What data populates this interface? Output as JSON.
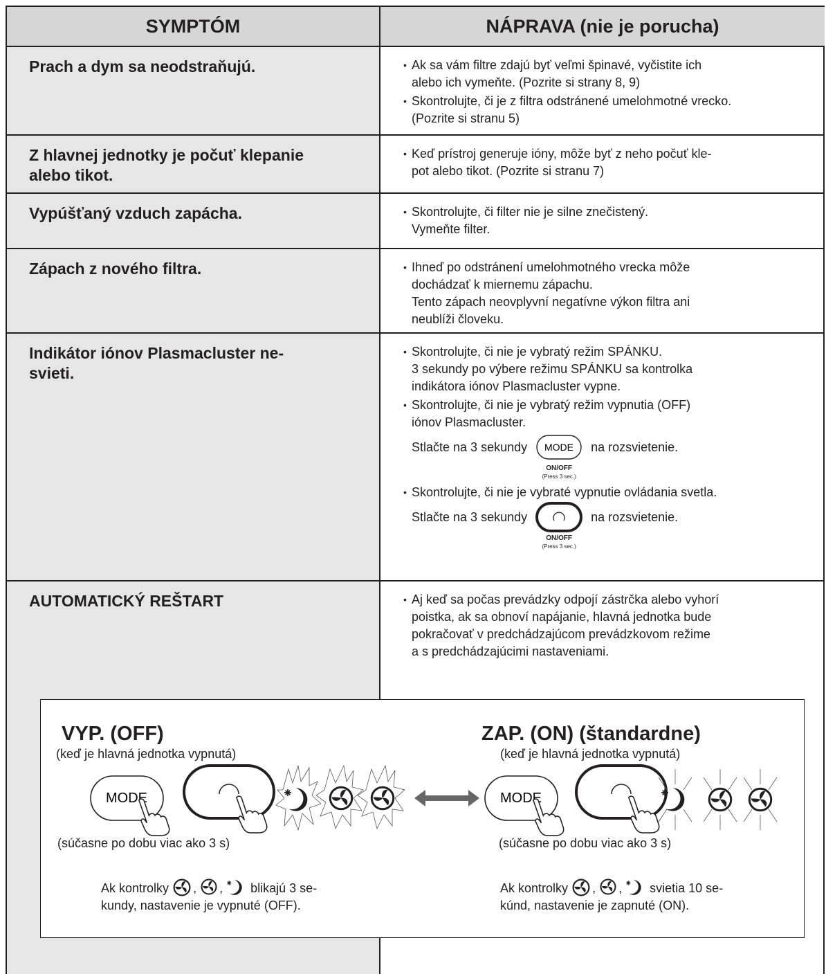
{
  "table": {
    "header": [
      "SYMPTÓM",
      "NÁPRAVA (nie je porucha)"
    ],
    "rows": [
      {
        "symptom": [
          "Prach a dym sa neodstraňujú."
        ],
        "remedy": [
          {
            "lines": [
              "Ak sa vám filtre zdajú byť veľmi špinavé, vyčistite ich",
              "alebo ich vymeňte. (Pozrite si strany 8, 9)"
            ]
          },
          {
            "lines": [
              "Skontrolujte, či je z filtra odstránené umelohmotné vrecko.",
              "(Pozrite si stranu 5)"
            ]
          }
        ]
      },
      {
        "symptom": [
          "Z hlavnej jednotky je počuť klepanie",
          "alebo tikot."
        ],
        "remedy": [
          {
            "lines": [
              "Keď prístroj generuje ióny, môže byť z neho počuť kle-",
              "pot alebo tikot. (Pozrite si stranu 7)"
            ]
          }
        ]
      },
      {
        "symptom": [
          "Vypúšťaný vzduch zapácha."
        ],
        "remedy": [
          {
            "lines": [
              "Skontrolujte, či filter nie je silne znečistený.",
              "Vymeňte filter."
            ]
          }
        ]
      },
      {
        "symptom": [
          "Zápach z nového filtra."
        ],
        "remedy": [
          {
            "lines": [
              "Ihneď po odstránení umelohmotného vrecka môže",
              "dochádzať k miernemu zápachu.",
              "Tento zápach neovplyvní negatívne výkon filtra ani",
              "neublíži človeku."
            ]
          }
        ]
      },
      {
        "symptom": [
          "Indikátor iónov Plasmacluster ne-",
          "svieti."
        ],
        "remedy": [
          {
            "lines": [
              "Skontrolujte, či nie je vybratý režim SPÁNKU.",
              "3 sekundy po výbere režimu SPÁNKU sa kontrolka",
              "indikátora iónov Plasmacluster vypne."
            ]
          },
          {
            "lines": [
              "Skontrolujte, či nie je vybratý režim vypnutia (OFF)",
              "iónov Plasmacluster."
            ],
            "press": {
              "before": "Stlačte na 3 sekundy",
              "button": "MODE",
              "after": "na rozsvietenie.",
              "caption": "ON/OFF",
              "note": "(Press 3 sec.)"
            }
          },
          {
            "lines": [
              "Skontrolujte, či nie je vybraté vypnutie ovládania svetla."
            ],
            "press": {
              "before": "Stlačte na 3 sekundy",
              "after": "na rozsvietenie.",
              "caption": "ON/OFF",
              "note": "(Press 3 sec.)"
            }
          }
        ]
      },
      {
        "symptom": [
          "AUTOMATICKÝ REŠTART"
        ],
        "remedy": [
          {
            "lines": [
              "Aj keď sa počas prevádzky odpojí zástrčka alebo vyhorí",
              "poistka, ak sa obnoví napájanie, hlavná jednotka bude",
              "pokračovať v predchádzajúcom prevádzkovom režime",
              "a s predchádzajúcimi nastaveniami."
            ]
          }
        ]
      }
    ]
  },
  "panel": {
    "separator": ",",
    "off": {
      "title": "VYP. (OFF)",
      "subtitle": "(keď je hlavná jednotka vypnutá)",
      "button": "MODE",
      "caption": "(súčasne po dobu viac ako 3 s)",
      "text": [
        "Ak kontrolky",
        "blikajú 3 se-",
        "kundy, nastavenie je vypnuté (OFF)."
      ]
    },
    "on": {
      "title": "ZAP. (ON) (štandardne)",
      "subtitle": "(keď je hlavná jednotka vypnutá)",
      "button": "MODE",
      "caption": "(súčasne po dobu viac ako 3 s)",
      "text": [
        "Ak kontrolky",
        "svietia 10 se-",
        "kúnd, nastavenie je zapnuté (ON)."
      ]
    }
  }
}
